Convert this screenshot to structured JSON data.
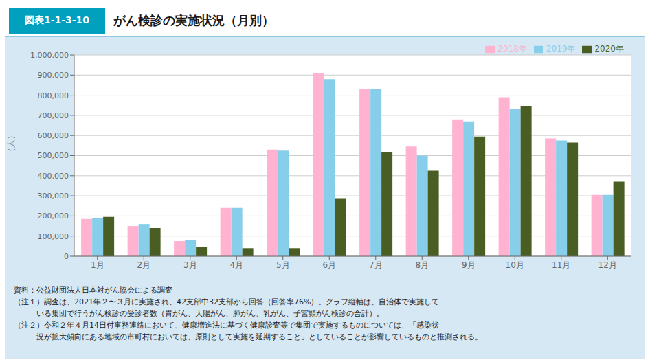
{
  "chart_data": {
    "type": "bar",
    "figure_label": "図表1-1-3-10",
    "title": "がん検診の実施状況（月別）",
    "y_label": "（人）",
    "categories": [
      "1月",
      "2月",
      "3月",
      "4月",
      "5月",
      "6月",
      "7月",
      "8月",
      "9月",
      "10月",
      "11月",
      "12月"
    ],
    "series": [
      {
        "name": "2018年",
        "color": "#FFB3D1",
        "values": [
          185000,
          150000,
          75000,
          240000,
          530000,
          910000,
          830000,
          545000,
          680000,
          790000,
          585000,
          305000
        ]
      },
      {
        "name": "2019年",
        "color": "#87CEEB",
        "values": [
          190000,
          160000,
          80000,
          240000,
          525000,
          880000,
          830000,
          500000,
          670000,
          730000,
          575000,
          305000
        ]
      },
      {
        "name": "2020年",
        "color": "#4A5E23",
        "values": [
          195000,
          140000,
          45000,
          40000,
          40000,
          285000,
          515000,
          425000,
          595000,
          745000,
          565000,
          370000
        ]
      }
    ],
    "ylim": [
      0,
      1000000
    ],
    "yticks": [
      0,
      {
        "value": 100000,
        "label": "100,000"
      },
      {
        "value": 200000,
        "label": "200,000"
      },
      {
        "value": 300000,
        "label": "300,000"
      },
      {
        "value": 400000,
        "label": "400,000"
      },
      {
        "value": 500000,
        "label": "500,000"
      },
      {
        "value": 600000,
        "label": "600,000"
      },
      {
        "value": 700000,
        "label": "700,000"
      },
      {
        "value": 800000,
        "label": "800,000"
      },
      {
        "value": 900000,
        "label": "900,000"
      },
      {
        "value": 1000000,
        "label": "1,000,000"
      }
    ],
    "grid": true,
    "legend": "upper right",
    "notes": [
      "資料：公益財団法人日本対がん協会による調査",
      "（注１）調査は、2021年２〜３月に実施され、42支部中32支部から回答（回答率76%）。グラフ縦軸は、自治体で実施して",
      "　　　いる集団で行うがん検診の受診者数（胃がん、大腸がん、肺がん、乳がん、子宮頸がん検診の合計）。",
      "（注２）令和２年４月14日付事務連絡において、健康増進法に基づく健康診査等で集団で実施するものについては、「感染状",
      "　　　況が拡大傾向にある地域の市町村においては、原則として実施を延期すること」としていることが影響しているものと推測される。"
    ]
  }
}
